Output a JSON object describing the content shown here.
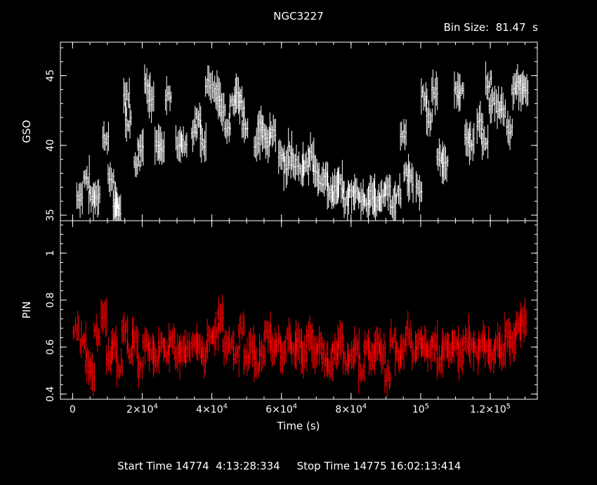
{
  "title": "NGC3227",
  "bin_size_label": "Bin Size:  81.47  s",
  "x_label": "Time (s)",
  "footer": {
    "start": "Start Time 14774  4:13:28:334",
    "stop": "Stop Time 14775 16:02:13:414"
  },
  "colors": {
    "top_series": "#ffffff",
    "bottom_series": "#ff0000",
    "axes": "#ffffff",
    "background": "#000000"
  },
  "chart_data": [
    {
      "type": "scatter",
      "ylabel": "GSO",
      "xlim": [
        -3500,
        133500
      ],
      "ylim": [
        34.6,
        47.4
      ],
      "y_ticks": [
        35,
        40,
        45
      ],
      "series": [
        {
          "color": "#ffffff",
          "x": [
            2000,
            4000,
            5500,
            7000,
            9500,
            11000,
            12500,
            13000,
            15500,
            16000,
            18500,
            19500,
            21500,
            22500,
            24500,
            25500,
            27500,
            30500,
            32000,
            35000,
            36000,
            37500,
            39000,
            41000,
            42000,
            43000,
            44500,
            46000,
            47500,
            48500,
            49500,
            53000,
            54000,
            55000,
            56000,
            57500,
            60000,
            61500,
            62500,
            63500,
            65500,
            67000,
            68500,
            70000,
            71500,
            72500,
            74000,
            75500,
            77000,
            78500,
            80000,
            81500,
            83000,
            84500,
            86000,
            87500,
            89000,
            90500,
            92000,
            93500,
            95000,
            96000,
            97000,
            99500,
            101000,
            102500,
            104000,
            105500,
            107000,
            110500,
            111500,
            113500,
            114500,
            117000,
            118500,
            119500,
            120500,
            122500,
            123500,
            125500,
            127000,
            128000,
            129000,
            130000
          ],
          "y": [
            36.4,
            37.6,
            36.2,
            36.5,
            40.5,
            37.6,
            35.8,
            35.4,
            43.6,
            41.7,
            38.8,
            40.0,
            44.6,
            43.2,
            40.0,
            39.6,
            43.6,
            40.2,
            40.1,
            41.0,
            42.0,
            40.2,
            44.4,
            44.0,
            43.3,
            42.5,
            41.2,
            43.2,
            43.5,
            43.0,
            41.5,
            40.2,
            41.6,
            40.9,
            40.3,
            40.8,
            39.4,
            38.5,
            39.8,
            38.8,
            38.2,
            38.6,
            39.3,
            37.9,
            37.4,
            38.1,
            36.5,
            36.9,
            37.2,
            36.0,
            36.6,
            36.7,
            36.2,
            35.8,
            36.5,
            36.0,
            36.2,
            36.8,
            35.6,
            36.5,
            40.8,
            38.2,
            37.5,
            36.9,
            43.5,
            42.0,
            43.8,
            39.2,
            38.5,
            44.0,
            43.8,
            40.4,
            40.3,
            41.5,
            40.2,
            44.5,
            43.0,
            42.8,
            42.4,
            41.0,
            44.0,
            44.8,
            44.0,
            43.8
          ]
        }
      ]
    },
    {
      "type": "scatter",
      "ylabel": "PIN",
      "xlim": [
        -3500,
        133500
      ],
      "ylim": [
        0.378,
        1.138
      ],
      "y_ticks": [
        0.4,
        0.6,
        0.8,
        1
      ],
      "x_ticks": [
        "0",
        "2×10⁴",
        "4×10⁴",
        "6×10⁴",
        "8×10⁴",
        "10⁵",
        "1.2×10⁵"
      ],
      "x_tick_values": [
        0,
        20000,
        40000,
        60000,
        80000,
        100000,
        120000
      ],
      "series": [
        {
          "color": "#ff0000",
          "x": [
            1000,
            3000,
            4500,
            5500,
            7000,
            9000,
            10500,
            12000,
            13500,
            15000,
            16500,
            18000,
            19500,
            21000,
            22500,
            24000,
            25500,
            27000,
            28500,
            30000,
            31500,
            33000,
            35000,
            36500,
            38000,
            39500,
            41000,
            42500,
            44000,
            45500,
            47000,
            48500,
            50000,
            51500,
            53000,
            54500,
            56000,
            57500,
            59000,
            60500,
            62000,
            63500,
            65000,
            66500,
            68000,
            69500,
            71000,
            72500,
            74000,
            75500,
            77000,
            78500,
            80000,
            81500,
            83000,
            84500,
            86000,
            87500,
            89000,
            90500,
            92000,
            93500,
            95000,
            96500,
            98000,
            99500,
            101000,
            102500,
            104000,
            105500,
            107000,
            108500,
            110000,
            111500,
            113000,
            114500,
            116000,
            117500,
            119000,
            120500,
            122000,
            123500,
            125000,
            126500,
            128000,
            129500
          ],
          "y": [
            0.68,
            0.62,
            0.52,
            0.48,
            0.66,
            0.72,
            0.56,
            0.62,
            0.52,
            0.68,
            0.58,
            0.64,
            0.52,
            0.62,
            0.58,
            0.56,
            0.6,
            0.58,
            0.64,
            0.56,
            0.6,
            0.58,
            0.62,
            0.6,
            0.56,
            0.64,
            0.66,
            0.74,
            0.6,
            0.62,
            0.56,
            0.68,
            0.54,
            0.6,
            0.52,
            0.58,
            0.66,
            0.6,
            0.62,
            0.56,
            0.64,
            0.58,
            0.62,
            0.56,
            0.66,
            0.58,
            0.6,
            0.56,
            0.52,
            0.58,
            0.62,
            0.54,
            0.56,
            0.6,
            0.5,
            0.62,
            0.56,
            0.6,
            0.58,
            0.48,
            0.64,
            0.56,
            0.6,
            0.66,
            0.58,
            0.62,
            0.6,
            0.58,
            0.62,
            0.54,
            0.6,
            0.58,
            0.62,
            0.56,
            0.64,
            0.6,
            0.58,
            0.62,
            0.6,
            0.56,
            0.62,
            0.58,
            0.66,
            0.62,
            0.68,
            0.72
          ]
        }
      ]
    }
  ]
}
